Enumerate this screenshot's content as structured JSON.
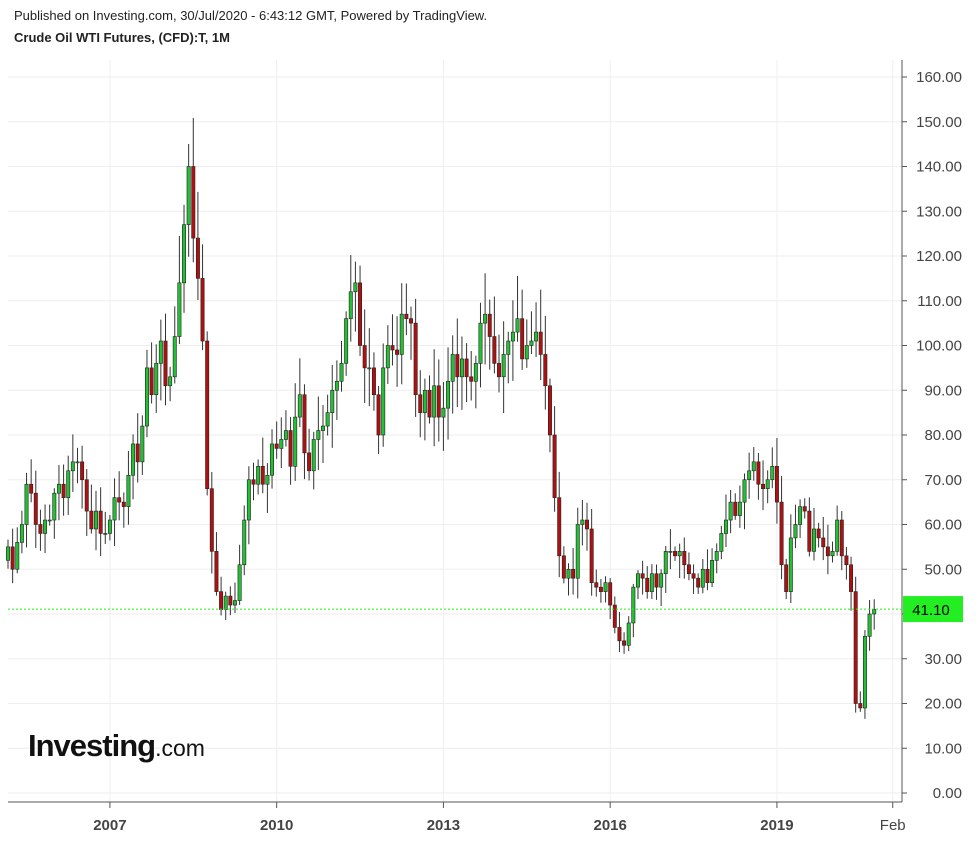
{
  "header": {
    "published": "Published on Investing.com, 30/Jul/2020 - 6:43:12 GMT, Powered by TradingView.",
    "title": "Crude Oil WTI Futures, (CFD):T, 1M"
  },
  "logo": {
    "main": "Investing",
    "suffix": ".com"
  },
  "colors": {
    "up": "#22c032",
    "down": "#b01010",
    "wick": "#333333",
    "last": "#22ee22",
    "grid": "#eeeeee",
    "axis": "#555555"
  },
  "chart_data": {
    "type": "candlestick",
    "y_ticks": [
      "160.00",
      "150.00",
      "140.00",
      "130.00",
      "120.00",
      "110.00",
      "100.00",
      "90.00",
      "80.00",
      "70.00",
      "60.00",
      "50.00",
      "40.00",
      "30.00",
      "20.00",
      "10.00",
      "0.00"
    ],
    "ylim": [
      0,
      160
    ],
    "x_ticks": [
      {
        "label": "2007",
        "date": "2007-01"
      },
      {
        "label": "2010",
        "date": "2010-01"
      },
      {
        "label": "2013",
        "date": "2013-01"
      },
      {
        "label": "2016",
        "date": "2016-01"
      },
      {
        "label": "2019",
        "date": "2019-01"
      },
      {
        "label": "Feb",
        "date": "2021-02"
      }
    ],
    "xlim": [
      "2005-03",
      "2021-04"
    ],
    "last_value": 41.1,
    "last_label": "41.10",
    "monthly_closes": {
      "start": "2005-03",
      "values": [
        55,
        50,
        56,
        60,
        69,
        67,
        60,
        58,
        61,
        61,
        67,
        69,
        66,
        72,
        74,
        74,
        70,
        63,
        59,
        63,
        58,
        58,
        61,
        66,
        65,
        64,
        71,
        78,
        74,
        82,
        95,
        89,
        96,
        101,
        91,
        93,
        102,
        114,
        127,
        140,
        124,
        115,
        101,
        68,
        54,
        45,
        41,
        44,
        42,
        43,
        51,
        61,
        70,
        69,
        73,
        69,
        71,
        78,
        77,
        79,
        81,
        73,
        84,
        89,
        76,
        72,
        79,
        81,
        82,
        85,
        90,
        92,
        96,
        106,
        112,
        114,
        100,
        95,
        95,
        89,
        80,
        95,
        100,
        99,
        98,
        107,
        106,
        105,
        89,
        85,
        90,
        84,
        91,
        84,
        86,
        92,
        98,
        93,
        97,
        93,
        92,
        96,
        105,
        107,
        102,
        96,
        93,
        98,
        101,
        103,
        106,
        97,
        100,
        101,
        103,
        98,
        91,
        80,
        66,
        53,
        48,
        50,
        48,
        60,
        61,
        59,
        47,
        46,
        45,
        47,
        42,
        37,
        34,
        33,
        38,
        46,
        49,
        48,
        45,
        49,
        46,
        49,
        54,
        54,
        53,
        54,
        51,
        49,
        48,
        46,
        50,
        47,
        52,
        54,
        58,
        61,
        65,
        62,
        65,
        70,
        72,
        74,
        69,
        68,
        70,
        73,
        65,
        51,
        45,
        57,
        60,
        64,
        63,
        54,
        59,
        57,
        55,
        53,
        54,
        61,
        53,
        51,
        45,
        20,
        19,
        35,
        40,
        41
      ]
    }
  }
}
